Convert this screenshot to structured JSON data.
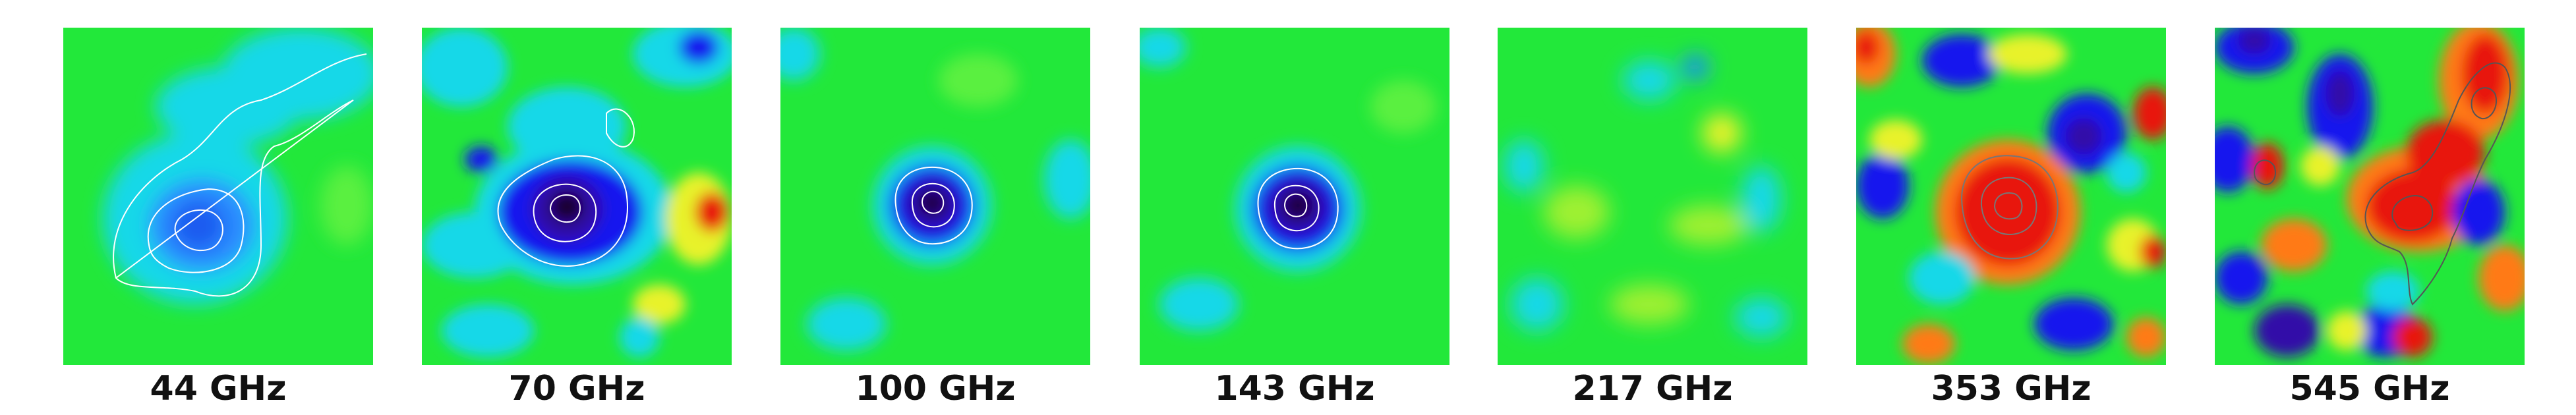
{
  "panels": [
    {
      "frequency": "44 GHz"
    },
    {
      "frequency": "70 GHz"
    },
    {
      "frequency": "100 GHz"
    },
    {
      "frequency": "143 GHz"
    },
    {
      "frequency": "217 GHz"
    },
    {
      "frequency": "353 GHz"
    },
    {
      "frequency": "545 GHz"
    }
  ],
  "colors": {
    "background_green": "#22e83a",
    "cyan": "#18d8e8",
    "light_blue": "#2a8cff",
    "blue": "#1515ee",
    "deep_blue": "#3010a8",
    "dark_purple": "#1a0630",
    "yellow": "#e8f22a",
    "orange": "#ff7a14",
    "red": "#e8140c",
    "dark_red": "#900a0a",
    "contour": "#ffffff",
    "contour_dark": "#555555"
  }
}
